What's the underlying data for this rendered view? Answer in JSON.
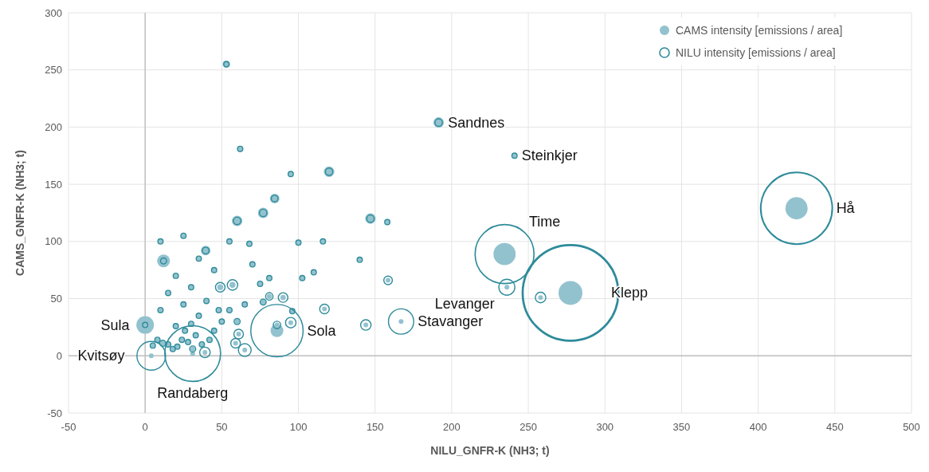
{
  "chart_data": {
    "type": "bubble",
    "xlabel": "NILU_GNFR-K (NH3; t)",
    "ylabel": "CAMS_GNFR-K (NH3; t)",
    "xlim": [
      -50,
      500
    ],
    "xticks": [
      -50,
      0,
      50,
      100,
      150,
      200,
      250,
      300,
      350,
      400,
      450,
      500
    ],
    "ylim": [
      -50,
      300
    ],
    "yticks": [
      -50,
      0,
      50,
      100,
      150,
      200,
      250,
      300
    ],
    "grid": true,
    "legend": "top right",
    "x": [
      425,
      277.5,
      234.5,
      236,
      258,
      241,
      191.5,
      167,
      86,
      0,
      4,
      31,
      53,
      62,
      120,
      147,
      84.5,
      77,
      60,
      39.5,
      12,
      95,
      158,
      140,
      116,
      100,
      110,
      102.5,
      158.5,
      117,
      144,
      57,
      49,
      81,
      96,
      90,
      81,
      77,
      75,
      95,
      86,
      60,
      61,
      59,
      65,
      39,
      31,
      21,
      11.5,
      5,
      8,
      15,
      18,
      24,
      28,
      33,
      37,
      42,
      26,
      45,
      20,
      30,
      50,
      35,
      55,
      10,
      25,
      40,
      15,
      30,
      20,
      45,
      35,
      10,
      25,
      55,
      68,
      70,
      48,
      65
    ],
    "series": [
      {
        "name": "CAMS intensity [emissions / area]",
        "color": "#93c2cf",
        "values": [
          129,
          55,
          89,
          60,
          51,
          175,
          204,
          30,
          22,
          27,
          0,
          2,
          255,
          181,
          161,
          120,
          137.5,
          125,
          118,
          92,
          83,
          159,
          117,
          84,
          100,
          99,
          73,
          68,
          66,
          41,
          27,
          62,
          60,
          68,
          39,
          51,
          52,
          47,
          63,
          29,
          27,
          30,
          19,
          11,
          5,
          3,
          6,
          8,
          11,
          9,
          14,
          10,
          6,
          14,
          12,
          18,
          10,
          14,
          22,
          22,
          26,
          28,
          30,
          35,
          40,
          40,
          45,
          48,
          55,
          60,
          70,
          75,
          85,
          100,
          105,
          100,
          98,
          80,
          40,
          45
        ],
        "sizes": [
          0.054,
          0.0625,
          0.054,
          0.0025,
          0.0025,
          0.0025,
          0.012,
          0.0025,
          0.018,
          0.034,
          0.0025,
          0.0025,
          0.006,
          0.004,
          0.012,
          0.012,
          0.01,
          0.012,
          0.012,
          0.01,
          0.018,
          0.0025,
          0.0025,
          0.0025,
          0.0025,
          0.0025,
          0.0025,
          0.0025,
          0.0025,
          0.0025,
          0.0025,
          0.004,
          0.004,
          0.0025,
          0.0025,
          0.003,
          0.003,
          0.003,
          0.0025,
          0.0025,
          0.0025,
          0.0025,
          0.0025,
          0.0025,
          0.0025,
          0.0025,
          0.0025,
          0.0025,
          0.0025,
          0.0025,
          0.0025,
          0.0025,
          0.0025,
          0.0025,
          0.0025,
          0.0025,
          0.0025,
          0.0025,
          0.0025,
          0.0025,
          0.0025,
          0.0025,
          0.0025,
          0.0025,
          0.0025,
          0.0025,
          0.0025,
          0.0025,
          0.0025,
          0.0025,
          0.0025,
          0.0025,
          0.0025,
          0.0025,
          0.0025,
          0.0025,
          0.0025,
          0.0025,
          0.0025,
          0.0025
        ]
      },
      {
        "name": "NILU intensity [emissions / area]",
        "color": "#2e8b9a",
        "values": [
          129,
          55,
          89,
          60,
          51,
          175,
          204,
          30,
          22,
          27,
          0,
          2,
          255,
          181,
          161,
          120,
          137.5,
          125,
          118,
          92,
          83,
          159,
          117,
          84,
          100,
          99,
          73,
          68,
          66,
          41,
          27,
          62,
          60,
          68,
          39,
          51,
          52,
          47,
          63,
          29,
          27,
          30,
          19,
          11,
          5,
          3,
          6,
          8,
          11,
          9,
          14,
          10,
          6,
          14,
          12,
          18,
          10,
          14,
          22,
          22,
          26,
          28,
          30,
          35,
          40,
          40,
          45,
          48,
          55,
          60,
          70,
          75,
          85,
          100,
          105,
          100,
          98,
          80,
          40,
          45
        ],
        "sizes": [
          0.56,
          1,
          0.38,
          0.028,
          0.012,
          0.003,
          0.006,
          0.07,
          0.3,
          0.003,
          0.09,
          0.34,
          0.003,
          0.003,
          0.006,
          0.006,
          0.005,
          0.006,
          0.006,
          0.005,
          0.004,
          0.003,
          0.003,
          0.003,
          0.003,
          0.003,
          0.003,
          0.003,
          0.008,
          0.01,
          0.012,
          0.012,
          0.01,
          0.003,
          0.003,
          0.01,
          0.006,
          0.004,
          0.003,
          0.012,
          0.006,
          0.004,
          0.01,
          0.01,
          0.018,
          0.012,
          0.004,
          0.003,
          0.004,
          0.003,
          0.003,
          0.003,
          0.003,
          0.003,
          0.003,
          0.003,
          0.003,
          0.003,
          0.003,
          0.003,
          0.003,
          0.003,
          0.003,
          0.003,
          0.003,
          0.003,
          0.003,
          0.003,
          0.003,
          0.003,
          0.003,
          0.003,
          0.003,
          0.003,
          0.003,
          0.003,
          0.003,
          0.003,
          0.003,
          0.003
        ]
      }
    ],
    "annotations": [
      {
        "text": "Hå",
        "x": 425,
        "y": 129
      },
      {
        "text": "Klepp",
        "x": 277.5,
        "y": 55
      },
      {
        "text": "Time",
        "x": 234.5,
        "y": 89
      },
      {
        "text": "Levanger",
        "x": 236,
        "y": 60
      },
      {
        "text": "Steinkjer",
        "x": 241,
        "y": 175
      },
      {
        "text": "Sandnes",
        "x": 191.5,
        "y": 204
      },
      {
        "text": "Stavanger",
        "x": 167,
        "y": 30
      },
      {
        "text": "Sola",
        "x": 86,
        "y": 22
      },
      {
        "text": "Sula",
        "x": 0,
        "y": 27
      },
      {
        "text": "Kvitsøy",
        "x": 4,
        "y": 0
      },
      {
        "text": "Randaberg",
        "x": 31,
        "y": 2
      }
    ]
  }
}
